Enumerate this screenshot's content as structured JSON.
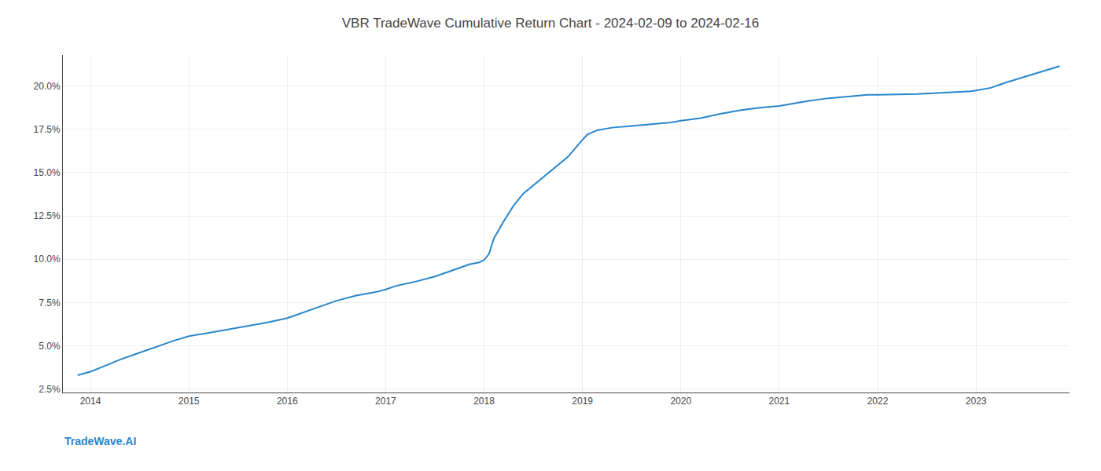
{
  "chart_data": {
    "type": "line",
    "title": "VBR TradeWave Cumulative Return Chart - 2024-02-09 to 2024-02-16",
    "annotations": [
      "TradeWave.AI"
    ],
    "color": "#2986cc",
    "x": [
      2013.87,
      2014.0,
      2014.15,
      2014.3,
      2014.5,
      2014.7,
      2014.85,
      2015.0,
      2015.2,
      2015.4,
      2015.6,
      2015.8,
      2016.0,
      2016.2,
      2016.5,
      2016.7,
      2016.9,
      2017.0,
      2017.1,
      2017.3,
      2017.5,
      2017.7,
      2017.85,
      2017.95,
      2018.0,
      2018.05,
      2018.1,
      2018.2,
      2018.3,
      2018.4,
      2018.55,
      2018.7,
      2018.85,
      2019.0,
      2019.05,
      2019.15,
      2019.3,
      2019.5,
      2019.7,
      2019.9,
      2020.0,
      2020.2,
      2020.4,
      2020.6,
      2020.8,
      2021.0,
      2021.15,
      2021.3,
      2021.5,
      2021.7,
      2021.9,
      2022.0,
      2022.2,
      2022.4,
      2022.6,
      2022.8,
      2022.95,
      2023.0,
      2023.15,
      2023.3,
      2023.5,
      2023.7,
      2023.85
    ],
    "values": [
      3.3,
      3.5,
      3.85,
      4.2,
      4.6,
      5.0,
      5.3,
      5.55,
      5.75,
      5.95,
      6.15,
      6.35,
      6.6,
      7.0,
      7.6,
      7.9,
      8.1,
      8.25,
      8.45,
      8.7,
      9.0,
      9.4,
      9.7,
      9.82,
      9.95,
      10.3,
      11.2,
      12.2,
      13.1,
      13.8,
      14.5,
      15.2,
      15.9,
      16.9,
      17.2,
      17.45,
      17.6,
      17.7,
      17.8,
      17.9,
      18.0,
      18.15,
      18.4,
      18.6,
      18.75,
      18.85,
      19.0,
      19.15,
      19.3,
      19.4,
      19.5,
      19.5,
      19.52,
      19.54,
      19.6,
      19.65,
      19.7,
      19.75,
      19.9,
      20.2,
      20.55,
      20.9,
      21.15
    ],
    "xlim": [
      2013.72,
      2023.95
    ],
    "xticks": [
      2014,
      2015,
      2016,
      2017,
      2018,
      2019,
      2020,
      2021,
      2022,
      2023
    ],
    "ylim": [
      2.3,
      21.8
    ],
    "yticks": [
      {
        "value": 2.5,
        "label": "2.5%"
      },
      {
        "value": 5.0,
        "label": "5.0%"
      },
      {
        "value": 7.5,
        "label": "7.5%"
      },
      {
        "value": 10.0,
        "label": "10.0%"
      },
      {
        "value": 12.5,
        "label": "12.5%"
      },
      {
        "value": 15.0,
        "label": "15.0%"
      },
      {
        "value": 17.5,
        "label": "17.5%"
      },
      {
        "value": 20.0,
        "label": "20.0%"
      }
    ],
    "grid": true
  }
}
